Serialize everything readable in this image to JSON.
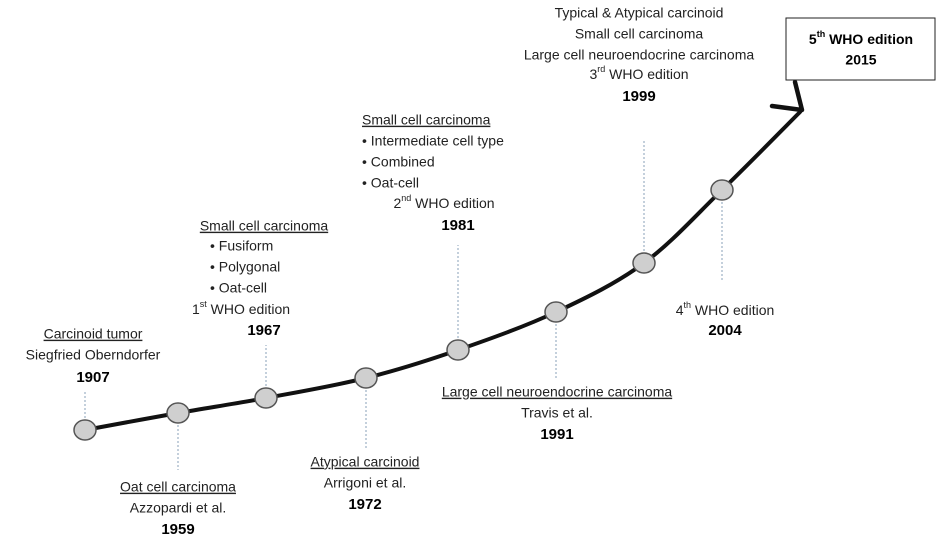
{
  "events": [
    {
      "title": "Carcinoid tumor",
      "lines": [
        "Siegfried Oberndorfer"
      ],
      "year": "1907"
    },
    {
      "title": "Oat cell carcinoma",
      "lines": [
        "Azzopardi et al."
      ],
      "year": "1959"
    },
    {
      "title": "Small cell carcinoma",
      "bullets": [
        "• Fusiform",
        "• Polygonal",
        "• Oat-cell"
      ],
      "edition": {
        "number": "1",
        "suffix": "st",
        "text": " WHO edition"
      },
      "year": "1967"
    },
    {
      "title": "Atypical carcinoid",
      "lines": [
        "Arrigoni et al."
      ],
      "year": "1972"
    },
    {
      "title": "Small cell carcinoma",
      "bullets": [
        "• Intermediate cell type",
        "• Combined",
        "• Oat-cell"
      ],
      "edition": {
        "number": "2",
        "suffix": "nd",
        "text": " WHO edition"
      },
      "year": "1981"
    },
    {
      "title": "Large cell neuroendocrine carcinoma",
      "lines": [
        "Travis et al."
      ],
      "year": "1991"
    },
    {
      "lines": [
        "Typical & Atypical carcinoid",
        "Small cell carcinoma",
        "Large cell neuroendocrine carcinoma"
      ],
      "edition": {
        "number": "3",
        "suffix": "rd",
        "text": " WHO edition"
      },
      "year": "1999"
    },
    {
      "edition": {
        "number": "4",
        "suffix": "th",
        "text": " WHO edition"
      },
      "year": "2004"
    }
  ],
  "box": {
    "edition": {
      "number": "5",
      "suffix": "th",
      "text": " WHO edition"
    },
    "year": "2015"
  }
}
